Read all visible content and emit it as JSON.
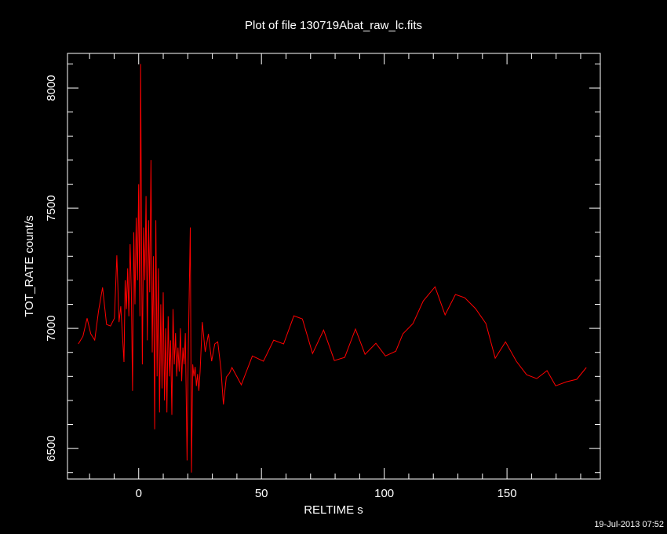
{
  "chart_data": {
    "type": "line",
    "title": "Plot of file 130719Abat_raw_lc.fits",
    "x_label": "RELTIME  s",
    "y_label": "TOT_RATE  count/s",
    "footer": "19-Jul-2013 07:52",
    "color": "#ff0000",
    "xlim": [
      -29,
      188
    ],
    "ylim": [
      6373,
      8144
    ],
    "xticks": [
      0,
      50,
      100,
      150
    ],
    "yticks": [
      6500,
      7000,
      7500,
      8000
    ],
    "xminorticks": [
      -20,
      -10,
      10,
      20,
      30,
      40,
      60,
      70,
      80,
      90,
      110,
      120,
      130,
      140,
      160,
      170,
      180
    ],
    "yminorticks": [
      6400,
      6600,
      6700,
      6800,
      6900,
      7100,
      7200,
      7300,
      7400,
      7600,
      7700,
      7800,
      7900,
      8100
    ],
    "x": [
      -24.6,
      -22.7,
      -21,
      -19.5,
      -17.9,
      -16.3,
      -14.7,
      -13.1,
      -11.5,
      -9.9,
      -8.9,
      -8,
      -7.3,
      -6,
      -5.5,
      -5,
      -4.5,
      -4,
      -3.5,
      -3,
      -2.5,
      -2,
      -1.5,
      -1,
      -0.5,
      0,
      0.5,
      0.8,
      1.2,
      1.5,
      2,
      2.5,
      3,
      3.5,
      4,
      4.5,
      5,
      5.5,
      6,
      6.5,
      7,
      7.5,
      8,
      8.5,
      9,
      9.5,
      10,
      10.5,
      11,
      11.5,
      12,
      12.5,
      13,
      13.5,
      14,
      14.5,
      15,
      15.5,
      16,
      16.5,
      17,
      17.5,
      18,
      18.5,
      19,
      19.7,
      20.2,
      21,
      21.5,
      22,
      22.5,
      23,
      23.5,
      24,
      24.5,
      25,
      25.9,
      27.1,
      28.4,
      29.7,
      31,
      32.2,
      33.5,
      34.5,
      35.7,
      37,
      38,
      41.8,
      46.3,
      50.8,
      55,
      59,
      63.2,
      66.7,
      70.8,
      75.3,
      79.7,
      83.9,
      88.3,
      92.2,
      96.6,
      100.5,
      104.7,
      107.6,
      111.7,
      115.9,
      120.7,
      124.8,
      129,
      132.8,
      137.2,
      141.4,
      145.2,
      149.4,
      153.8,
      158,
      162.1,
      166.3,
      169.8,
      174.3,
      178.4,
      182.3
    ],
    "values": [
      6935,
      6967,
      7042,
      6977,
      6951,
      7075,
      7170,
      7016,
      7010,
      7042,
      7304,
      7026,
      7092,
      6860,
      7200,
      7080,
      7250,
      7050,
      7350,
      7150,
      6740,
      7400,
      7100,
      7460,
      7200,
      7600,
      7050,
      8100,
      7300,
      6850,
      7420,
      7200,
      7550,
      6950,
      7450,
      7150,
      7700,
      6900,
      7300,
      6580,
      7450,
      6800,
      7250,
      6650,
      7100,
      6750,
      7150,
      6700,
      7000,
      6650,
      7050,
      6800,
      6950,
      6640,
      7080,
      6850,
      6980,
      6800,
      6920,
      6820,
      7000,
      6780,
      6920,
      6850,
      6980,
      6450,
      6900,
      7420,
      6400,
      6850,
      6800,
      6840,
      6760,
      6810,
      6740,
      6820,
      7026,
      6902,
      6977,
      6863,
      6935,
      6944,
      6830,
      6683,
      6797,
      6814,
      6837,
      6765,
      6885,
      6863,
      6951,
      6935,
      7052,
      7039,
      6895,
      6993,
      6866,
      6879,
      6997,
      6892,
      6938,
      6885,
      6905,
      6977,
      7020,
      7114,
      7173,
      7056,
      7141,
      7127,
      7082,
      7020,
      6876,
      6944,
      6863,
      6807,
      6791,
      6824,
      6761,
      6778,
      6788,
      6837
    ]
  }
}
